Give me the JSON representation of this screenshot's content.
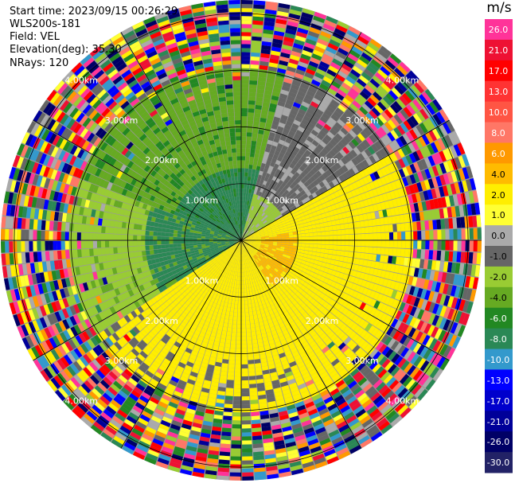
{
  "header": {
    "start_time": "Start time: 2023/09/15 00:26:29",
    "instrument": "WLS200s-181",
    "field": "Field: VEL",
    "elevation": "Elevation(deg): 35.30",
    "nrays": "NRays: 120"
  },
  "colorbar": {
    "unit": "m/s",
    "ticks": [
      "26.0",
      "21.0",
      "17.0",
      "13.0",
      "10.0",
      "8.0",
      "6.0",
      "4.0",
      "2.0",
      "1.0",
      "0.0",
      "-1.0",
      "-2.0",
      "-4.0",
      "-6.0",
      "-8.0",
      "-10.0",
      "-13.0",
      "-17.0",
      "-21.0",
      "-26.0",
      "-30.0"
    ],
    "colors": [
      "#ff3399",
      "#ee1133",
      "#ff0000",
      "#ff3333",
      "#ff5544",
      "#ff7766",
      "#ff9900",
      "#ffbb00",
      "#ffee00",
      "#ffff33",
      "#aaaaaa",
      "#666666",
      "#99cc33",
      "#66aa22",
      "#228822",
      "#2a8855",
      "#3399cc",
      "#0000ff",
      "#0000cc",
      "#000099",
      "#000066",
      "#222266"
    ]
  },
  "chart_data": {
    "type": "heatmap",
    "title": "",
    "projection": "polar PPI",
    "nrays": 120,
    "range_rings_km": [
      1.0,
      2.0,
      3.0,
      4.0
    ],
    "ring_labels": [
      "1.00km",
      "2.00km",
      "3.00km",
      "4.00km"
    ],
    "max_range_km": 5.0,
    "velocity_regions": [
      {
        "sector": "north / north-west",
        "range_km": "0-3",
        "velocity_ms": "-6 to -4"
      },
      {
        "sector": "west",
        "range_km": "0-2",
        "velocity_ms": "-8 to -6"
      },
      {
        "sector": "east / south-east",
        "range_km": "0-4",
        "velocity_ms": "2 to 4"
      },
      {
        "sector": "east",
        "range_km": "0.5-1.2",
        "velocity_ms": "4 to 6"
      },
      {
        "sector": "outer ring",
        "range_km": "3.5-5",
        "velocity_ms": "noise -30 to 26"
      }
    ],
    "colorbar_range": [
      -30,
      26
    ]
  }
}
